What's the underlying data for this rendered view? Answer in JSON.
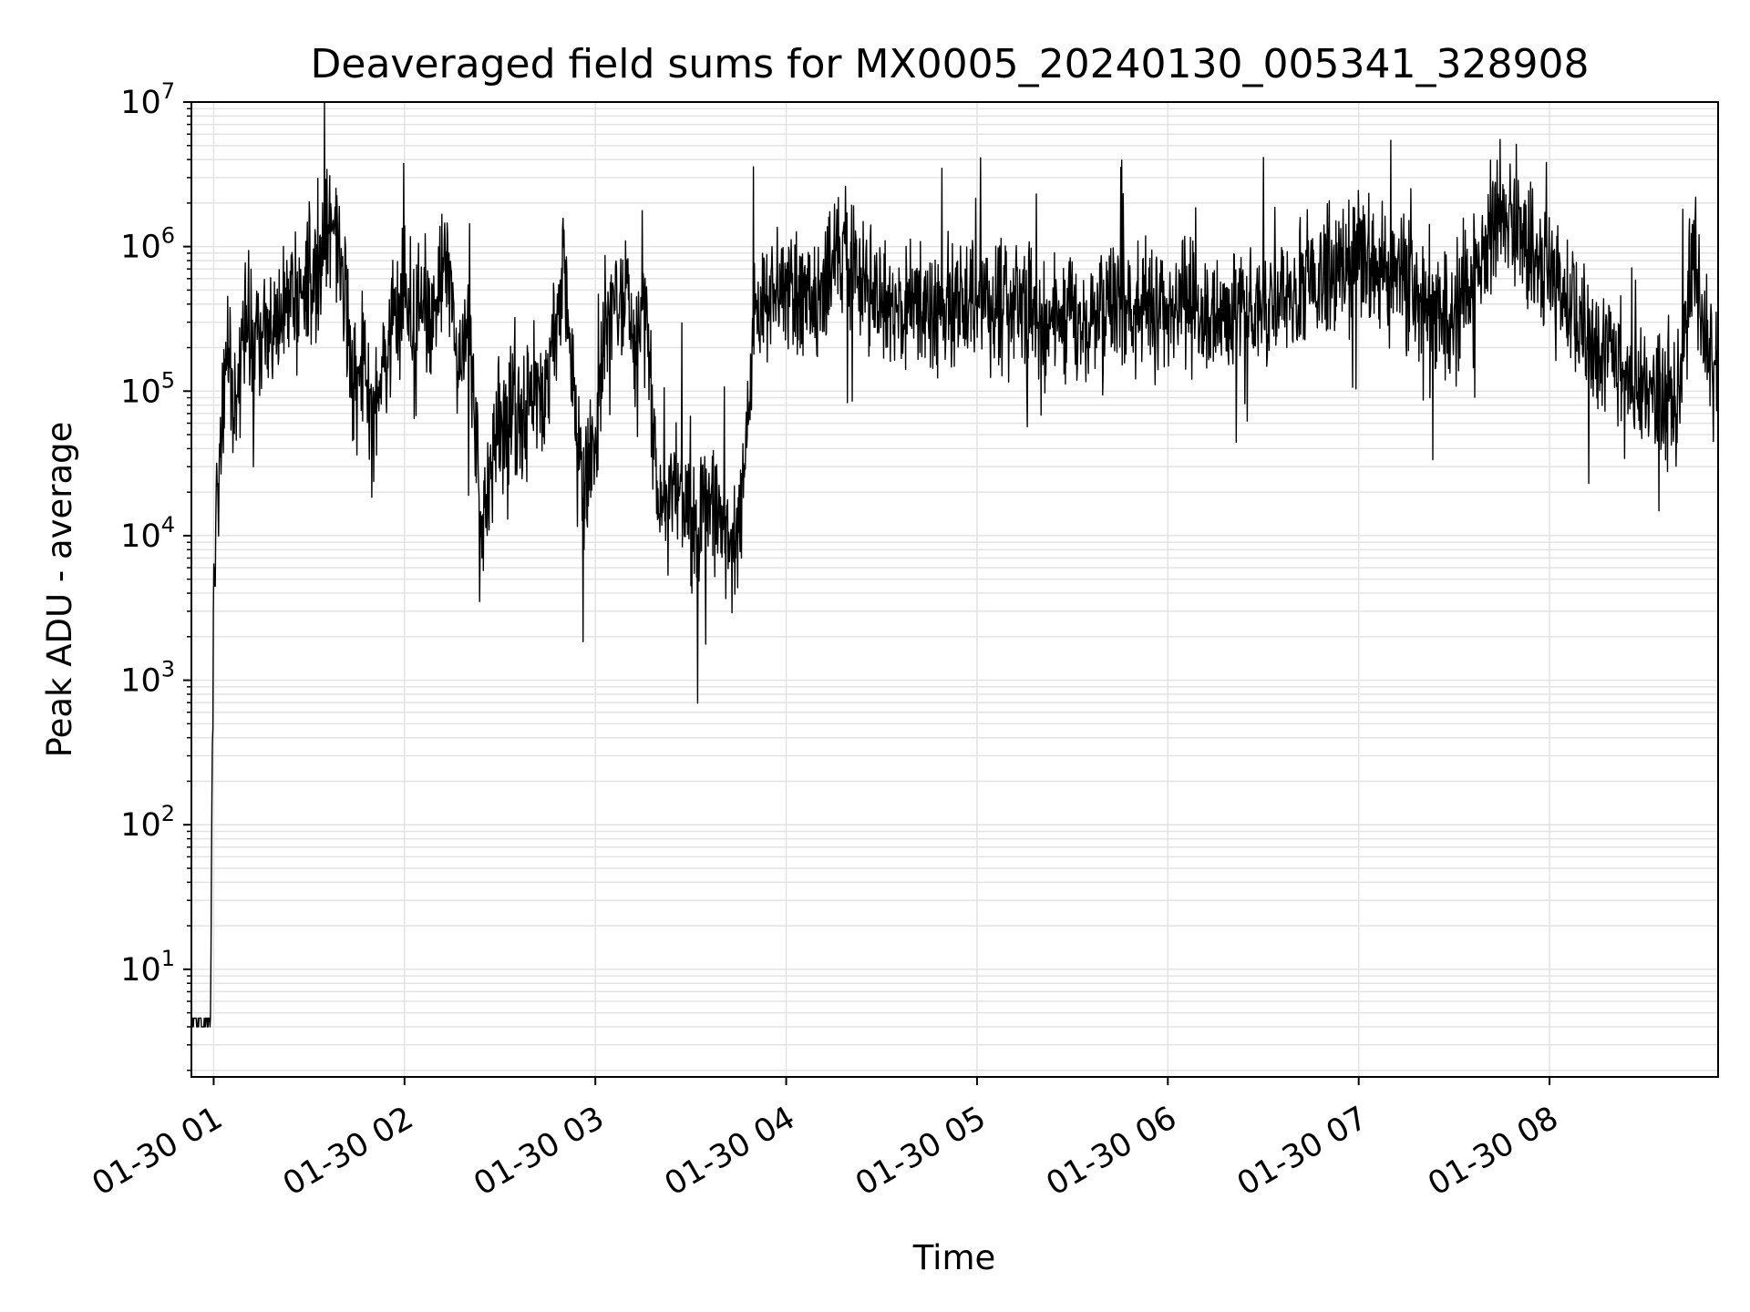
{
  "chart_data": {
    "type": "line",
    "title": "Deaveraged field sums for MX0005_20240130_005341_328908",
    "xlabel": "Time",
    "ylabel": "Peak ADU - average",
    "y_scale": "log",
    "ylim": [
      1.8,
      10000000
    ],
    "xlim": [
      "2024-01-30 00:53",
      "2024-01-30 08:53"
    ],
    "grid": true,
    "line_color": "#000000",
    "grid_color": "#e3e3e3",
    "x_ticks": [
      {
        "value": "2024-01-30 01:00",
        "label": "01-30 01"
      },
      {
        "value": "2024-01-30 02:00",
        "label": "01-30 02"
      },
      {
        "value": "2024-01-30 03:00",
        "label": "01-30 03"
      },
      {
        "value": "2024-01-30 04:00",
        "label": "01-30 04"
      },
      {
        "value": "2024-01-30 05:00",
        "label": "01-30 05"
      },
      {
        "value": "2024-01-30 06:00",
        "label": "01-30 06"
      },
      {
        "value": "2024-01-30 07:00",
        "label": "01-30 07"
      },
      {
        "value": "2024-01-30 08:00",
        "label": "01-30 08"
      }
    ],
    "y_ticks": [
      {
        "value": 10,
        "base": "10",
        "exp": "1"
      },
      {
        "value": 100,
        "base": "10",
        "exp": "2"
      },
      {
        "value": 1000,
        "base": "10",
        "exp": "3"
      },
      {
        "value": 10000,
        "base": "10",
        "exp": "4"
      },
      {
        "value": 100000,
        "base": "10",
        "exp": "5"
      },
      {
        "value": 1000000,
        "base": "10",
        "exp": "6"
      },
      {
        "value": 10000000,
        "base": "10",
        "exp": "7"
      }
    ],
    "series": [
      {
        "x": [
          "2024-01-30 00:53",
          "2024-01-30 00:59",
          "2024-01-30 01:00",
          "2024-01-30 01:02",
          "2024-01-30 01:04",
          "2024-01-30 01:07",
          "2024-01-30 01:10",
          "2024-01-30 01:14",
          "2024-01-30 01:20",
          "2024-01-30 01:27",
          "2024-01-30 01:33",
          "2024-01-30 01:38",
          "2024-01-30 01:41",
          "2024-01-30 01:44",
          "2024-01-30 01:47",
          "2024-01-30 01:50",
          "2024-01-30 01:55",
          "2024-01-30 02:00",
          "2024-01-30 02:03",
          "2024-01-30 02:05",
          "2024-01-30 02:08",
          "2024-01-30 02:13",
          "2024-01-30 02:17",
          "2024-01-30 02:20",
          "2024-01-30 02:22",
          "2024-01-30 02:24",
          "2024-01-30 02:30",
          "2024-01-30 02:37",
          "2024-01-30 02:45",
          "2024-01-30 02:50",
          "2024-01-30 02:56",
          "2024-01-30 03:00",
          "2024-01-30 03:03",
          "2024-01-30 03:08",
          "2024-01-30 03:12",
          "2024-01-30 03:15",
          "2024-01-30 03:20",
          "2024-01-30 03:25",
          "2024-01-30 03:30",
          "2024-01-30 03:35",
          "2024-01-30 03:40",
          "2024-01-30 03:45",
          "2024-01-30 03:50",
          "2024-01-30 03:55",
          "2024-01-30 04:00",
          "2024-01-30 04:10",
          "2024-01-30 04:15",
          "2024-01-30 04:30",
          "2024-01-30 05:00",
          "2024-01-30 05:30",
          "2024-01-30 06:00",
          "2024-01-30 06:20",
          "2024-01-30 06:40",
          "2024-01-30 07:00",
          "2024-01-30 07:20",
          "2024-01-30 07:30",
          "2024-01-30 07:40",
          "2024-01-30 07:45",
          "2024-01-30 08:00",
          "2024-01-30 08:15",
          "2024-01-30 08:22",
          "2024-01-30 08:30",
          "2024-01-30 08:40",
          "2024-01-30 08:45",
          "2024-01-30 08:50",
          "2024-01-30 08:53"
        ],
        "y": [
          4,
          4,
          4000,
          50000,
          150000,
          100000,
          300000,
          250000,
          300000,
          500000,
          700000,
          1500000,
          600000,
          80000,
          200000,
          50000,
          200000,
          500000,
          150000,
          600000,
          300000,
          900000,
          200000,
          200000,
          80000,
          15000,
          60000,
          70000,
          120000,
          600000,
          20000,
          40000,
          300000,
          500000,
          200000,
          800000,
          15000,
          30000,
          10000,
          20000,
          10000,
          8000,
          300000,
          500000,
          500000,
          400000,
          1000000,
          400000,
          400000,
          300000,
          400000,
          300000,
          500000,
          800000,
          500000,
          300000,
          1000000,
          2000000,
          600000,
          200000,
          150000,
          100000,
          80000,
          1000000,
          200000,
          100000
        ]
      }
    ]
  }
}
